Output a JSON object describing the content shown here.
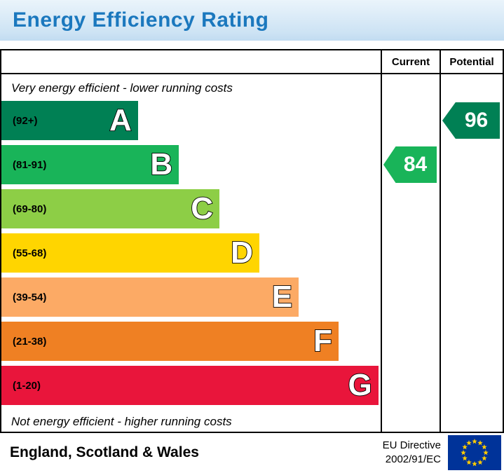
{
  "title": "Energy Efficiency Rating",
  "colors": {
    "title": "#1b78be",
    "title_bar_bg": "#cde3f4"
  },
  "header": {
    "current": "Current",
    "potential": "Potential"
  },
  "notes": {
    "top": "Very energy efficient - lower running costs",
    "bottom": "Not energy efficient - higher running costs"
  },
  "bands": [
    {
      "letter": "A",
      "range": "(92+)",
      "color": "#008054",
      "width_pct": 36.0
    },
    {
      "letter": "B",
      "range": "(81-91)",
      "color": "#19b459",
      "width_pct": 46.8
    },
    {
      "letter": "C",
      "range": "(69-80)",
      "color": "#8dce46",
      "width_pct": 57.5
    },
    {
      "letter": "D",
      "range": "(55-68)",
      "color": "#ffd500",
      "width_pct": 68.0
    },
    {
      "letter": "E",
      "range": "(39-54)",
      "color": "#fcaa65",
      "width_pct": 78.4
    },
    {
      "letter": "F",
      "range": "(21-38)",
      "color": "#ef8023",
      "width_pct": 88.9
    },
    {
      "letter": "G",
      "range": "(1-20)",
      "color": "#e9153b",
      "width_pct": 99.4
    }
  ],
  "ratings": {
    "current": {
      "value": "84",
      "band": "B",
      "band_index": 1,
      "color": "#19b459"
    },
    "potential": {
      "value": "96",
      "band": "A",
      "band_index": 0,
      "color": "#008054"
    }
  },
  "footer": {
    "region": "England, Scotland & Wales",
    "directive": [
      "EU Directive",
      "2002/91/EC"
    ]
  },
  "eu_flag": {
    "background": "#003399",
    "stars": "#ffcc00"
  },
  "chart_data": {
    "type": "bar",
    "title": "Energy Efficiency Rating",
    "categories": [
      "A",
      "B",
      "C",
      "D",
      "E",
      "F",
      "G"
    ],
    "ranges": [
      "(92+)",
      "(81-91)",
      "(69-80)",
      "(55-68)",
      "(39-54)",
      "(21-38)",
      "(1-20)"
    ],
    "colors": [
      "#008054",
      "#19b459",
      "#8dce46",
      "#ffd500",
      "#fcaa65",
      "#ef8023",
      "#e9153b"
    ],
    "bar_lengths_pct": [
      36.0,
      46.8,
      57.5,
      68.0,
      78.4,
      88.9,
      99.4
    ],
    "current": 84,
    "current_band": "B",
    "potential": 96,
    "potential_band": "A",
    "top_annotation": "Very energy efficient - lower running costs",
    "bottom_annotation": "Not energy efficient - higher running costs",
    "legend_position": "none",
    "grid": false
  }
}
